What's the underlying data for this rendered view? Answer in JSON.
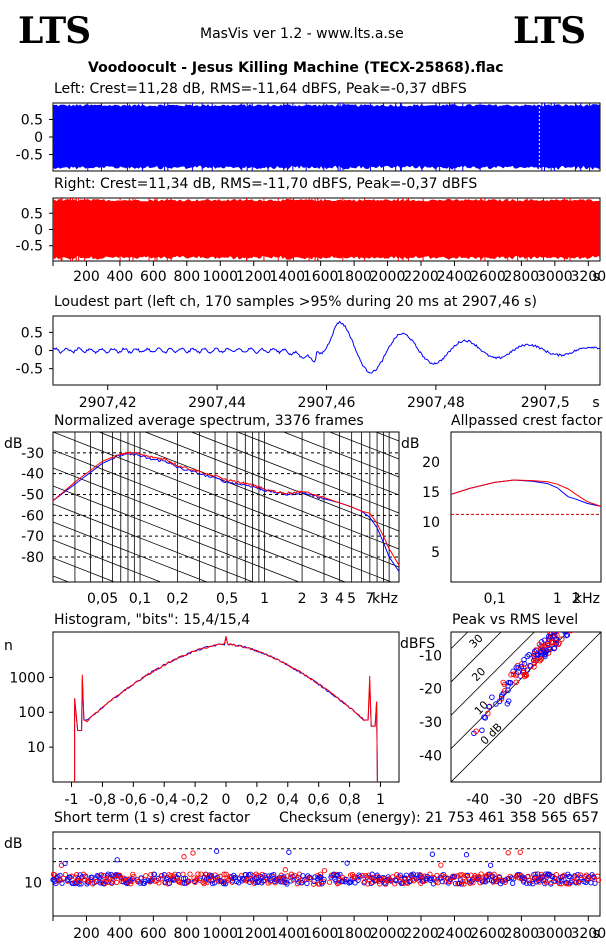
{
  "header": {
    "logo_left": "LTS",
    "logo_right": "LTS",
    "app": "MasVis ver 1.2 - www.lts.a.se",
    "file": "Voodoocult - Jesus Killing Machine (TECX-25868).flac"
  },
  "colors": {
    "left": "#0000ff",
    "right": "#ff0000",
    "grid": "#000000",
    "ref": "#cc0000"
  },
  "chart_data": [
    {
      "id": "left-waveform",
      "type": "area",
      "title": "Left: Crest=11,28 dB, RMS=-11,64 dBFS, Peak=-0,37 dBFS",
      "ytick_labels": [
        "0.5",
        "0",
        "-0.5"
      ],
      "yticks": [
        0.5,
        0,
        -0.5
      ],
      "ylim": [
        -0.97,
        0.97
      ],
      "envelope": 0.94,
      "marker_time": 2907.46,
      "xlim": [
        0,
        3270
      ]
    },
    {
      "id": "right-waveform",
      "type": "area",
      "title": "Right: Crest=11,34 dB, RMS=-11,70 dBFS, Peak=-0,37 dBFS",
      "ytick_labels": [
        "0.5",
        "0",
        "-0.5"
      ],
      "yticks": [
        0.5,
        0,
        -0.5
      ],
      "ylim": [
        -0.97,
        0.97
      ],
      "envelope": 0.94,
      "xlim": [
        0,
        3270
      ],
      "xtick_labels": [
        "200",
        "400",
        "600",
        "800",
        "1000",
        "1200",
        "1400",
        "1600",
        "1800",
        "2000",
        "2200",
        "2400",
        "2600",
        "2800",
        "3000",
        "3200",
        "s"
      ]
    },
    {
      "id": "loudest-part",
      "type": "line",
      "title": "Loudest part (left  ch, 170 samples >95% during 20 ms at 2907,46 s)",
      "ytick_labels": [
        "0.5",
        "0",
        "-0.5"
      ],
      "xlim": [
        2907.41,
        2907.51
      ],
      "ylim": [
        -0.95,
        0.95
      ],
      "xtick_labels": [
        "2907,42",
        "2907,44",
        "2907,46",
        "2907,48",
        "2907,5",
        "s"
      ],
      "xticks": [
        2907.42,
        2907.44,
        2907.46,
        2907.48,
        2907.5
      ],
      "peak_value": 0.95
    },
    {
      "id": "spectrum",
      "type": "line",
      "title": "Normalized average spectrum, 3376 frames",
      "ylabel": "dB",
      "ytick_labels": [
        "-30",
        "-40",
        "-50",
        "-60",
        "-70",
        "-80"
      ],
      "yticks": [
        -30,
        -40,
        -50,
        -60,
        -70,
        -80
      ],
      "ylim": [
        -92,
        -20
      ],
      "xlabel": "kHz",
      "xtick_labels": [
        "0,05",
        "0,1",
        "0,2",
        "0,5",
        "1",
        "2",
        "3",
        "4",
        "5",
        "7"
      ],
      "xticks": [
        0.05,
        0.1,
        0.2,
        0.5,
        1,
        2,
        3,
        4,
        5,
        7
      ],
      "xlim": [
        0.02,
        12
      ],
      "series": [
        {
          "x": [
            0.02,
            0.03,
            0.05,
            0.07,
            0.09,
            0.12,
            0.16,
            0.2,
            0.3,
            0.5,
            0.8,
            1,
            1.5,
            2,
            3,
            4,
            5,
            6,
            7,
            8,
            9,
            10,
            12
          ],
          "values": [
            -53,
            -45,
            -35,
            -31,
            -30.5,
            -33,
            -34,
            -37,
            -40,
            -44,
            -46,
            -48,
            -50,
            -49,
            -52,
            -54,
            -56,
            -58,
            -61,
            -66,
            -73,
            -80,
            -87
          ]
        },
        {
          "x": [
            0.02,
            0.03,
            0.05,
            0.07,
            0.09,
            0.12,
            0.16,
            0.2,
            0.3,
            0.5,
            0.8,
            1,
            1.5,
            2,
            3,
            4,
            5,
            6,
            7,
            8,
            9,
            10,
            12
          ],
          "values": [
            -53,
            -44,
            -34,
            -30.5,
            -30,
            -32,
            -33,
            -36,
            -39,
            -43,
            -45.5,
            -47.5,
            -49.5,
            -48.5,
            -51.5,
            -54,
            -56,
            -58,
            -59,
            -64,
            -70,
            -76,
            -84
          ]
        }
      ]
    },
    {
      "id": "allpassed-crest",
      "type": "line",
      "title": "Allpassed crest factor",
      "ylabel": "dB",
      "ytick_labels": [
        "20",
        "15",
        "10",
        "5"
      ],
      "yticks": [
        20,
        15,
        10,
        5
      ],
      "ylim": [
        0,
        25
      ],
      "xlabel": "kHz",
      "xtick_labels": [
        "0,1",
        "1",
        "2"
      ],
      "xticks": [
        0.1,
        1,
        2
      ],
      "xlim": [
        0.02,
        5
      ],
      "reference": 11.28,
      "series": [
        {
          "x": [
            0.02,
            0.04,
            0.1,
            0.2,
            0.4,
            0.7,
            1,
            1.5,
            2,
            3,
            5
          ],
          "values": [
            14.6,
            15.6,
            16.6,
            17.0,
            16.8,
            16.4,
            15.7,
            14.2,
            13.8,
            13.1,
            12.6
          ]
        },
        {
          "x": [
            0.02,
            0.04,
            0.1,
            0.2,
            0.4,
            0.7,
            1,
            1.5,
            2,
            3,
            5
          ],
          "values": [
            14.6,
            15.6,
            16.6,
            17.0,
            16.9,
            16.7,
            16.3,
            15.5,
            14.6,
            13.4,
            12.6
          ]
        }
      ]
    },
    {
      "id": "histogram",
      "type": "line",
      "title": "Histogram, \"bits\": 15,4/15,4",
      "ylabel": "n",
      "ytick_labels": [
        "1000",
        "100",
        "10"
      ],
      "yticks": [
        1000,
        100,
        10
      ],
      "ylim": [
        1,
        20000
      ],
      "xtick_labels": [
        "-1",
        "-0,8",
        "-0,6",
        "-0,4",
        "-0,2",
        "0",
        "0,2",
        "0,4",
        "0,6",
        "0,8",
        "1"
      ],
      "xticks": [
        -1,
        -0.8,
        -0.6,
        -0.4,
        -0.2,
        0,
        0.2,
        0.4,
        0.6,
        0.8,
        1
      ],
      "xlim": [
        -1.12,
        1.12
      ],
      "center_count": 9000,
      "edge_count": 50
    },
    {
      "id": "peak-vs-rms",
      "type": "scatter",
      "title": "Peak vs RMS level",
      "ylabel": "dBFS",
      "ytick_labels": [
        "-10",
        "-20",
        "-30",
        "-40"
      ],
      "yticks": [
        -10,
        -20,
        -30,
        -40
      ],
      "ylim": [
        -48,
        -3
      ],
      "xlabel": "dBFS",
      "xtick_labels": [
        "-40",
        "-30",
        "-20"
      ],
      "xticks": [
        -40,
        -30,
        -20
      ],
      "xlim": [
        -48,
        -3
      ],
      "diagonal_labels": [
        "40",
        "30",
        "20",
        "10",
        "0 dB"
      ],
      "diagonals": [
        40,
        30,
        20,
        10,
        0
      ]
    },
    {
      "id": "short-term-crest",
      "type": "scatter",
      "title": "Short term (1 s) crest factor",
      "checksum_label": "Checksum (energy):  21 753 461 358 565 657",
      "ylabel": "dB",
      "ytick_labels": [
        "10"
      ],
      "yticks": [
        10
      ],
      "ylim": [
        0,
        25
      ],
      "reference": 16.2,
      "xlim": [
        0,
        3270
      ],
      "xtick_labels": [
        "200",
        "400",
        "600",
        "800",
        "1000",
        "1200",
        "1400",
        "1600",
        "1800",
        "2000",
        "2200",
        "2400",
        "2600",
        "2800",
        "3000",
        "3200",
        "s"
      ],
      "typical_value": 11
    }
  ]
}
